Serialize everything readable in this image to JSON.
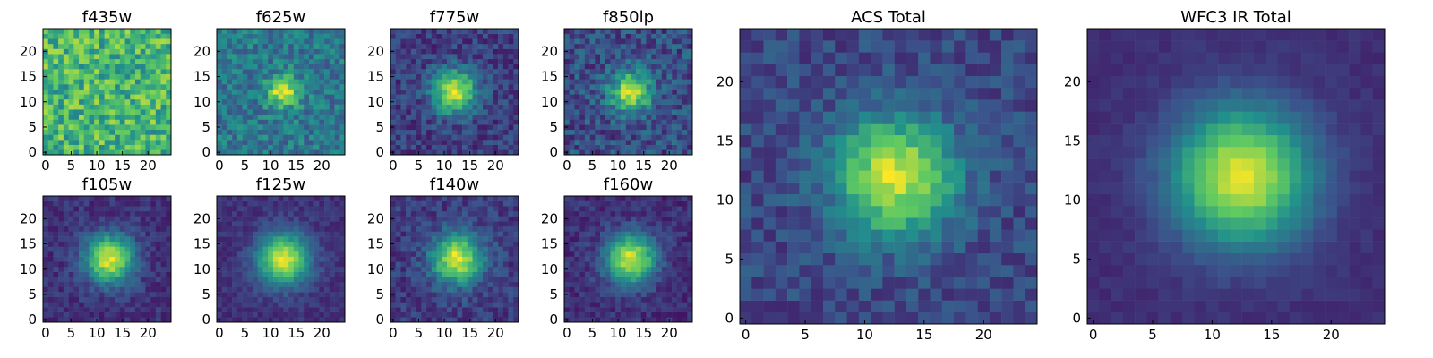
{
  "figure": {
    "colormap": "viridis",
    "colormap_stops": [
      "#440154",
      "#3b528b",
      "#21918c",
      "#5ec962",
      "#fde725"
    ]
  },
  "chart_data": [
    {
      "type": "heatmap",
      "title": "f435w",
      "grid": [
        25,
        25
      ],
      "xlim": [
        -0.5,
        24.5
      ],
      "ylim": [
        -0.5,
        24.5
      ],
      "xticks": [
        0,
        5,
        10,
        15,
        20
      ],
      "yticks": [
        0,
        5,
        10,
        15,
        20
      ],
      "source_center": [
        12,
        12
      ],
      "peak": 0.0,
      "source_width": 3.5,
      "background_level": 0.66,
      "noise_amplitude": 0.22,
      "seed": 11
    },
    {
      "type": "heatmap",
      "title": "f625w",
      "grid": [
        25,
        25
      ],
      "xlim": [
        -0.5,
        24.5
      ],
      "ylim": [
        -0.5,
        24.5
      ],
      "xticks": [
        0,
        5,
        10,
        15,
        20
      ],
      "yticks": [
        0,
        5,
        10,
        15,
        20
      ],
      "source_center": [
        12.5,
        12
      ],
      "peak": 0.58,
      "source_width": 2.1,
      "background_level": 0.4,
      "noise_amplitude": 0.15,
      "seed": 23
    },
    {
      "type": "heatmap",
      "title": "f775w",
      "grid": [
        25,
        25
      ],
      "xlim": [
        -0.5,
        24.5
      ],
      "ylim": [
        -0.5,
        24.5
      ],
      "xticks": [
        0,
        5,
        10,
        15,
        20
      ],
      "yticks": [
        0,
        5,
        10,
        15,
        20
      ],
      "source_center": [
        12,
        12
      ],
      "peak": 0.74,
      "source_width": 3.0,
      "background_level": 0.19,
      "noise_amplitude": 0.12,
      "seed": 37
    },
    {
      "type": "heatmap",
      "title": "f850lp",
      "grid": [
        25,
        25
      ],
      "xlim": [
        -0.5,
        24.5
      ],
      "ylim": [
        -0.5,
        24.5
      ],
      "xticks": [
        0,
        5,
        10,
        15,
        20
      ],
      "yticks": [
        0,
        5,
        10,
        15,
        20
      ],
      "source_center": [
        12.5,
        12
      ],
      "peak": 0.68,
      "source_width": 2.8,
      "background_level": 0.24,
      "noise_amplitude": 0.15,
      "seed": 41
    },
    {
      "type": "heatmap",
      "title": "f105w",
      "grid": [
        25,
        25
      ],
      "xlim": [
        -0.5,
        24.5
      ],
      "ylim": [
        -0.5,
        24.5
      ],
      "xticks": [
        0,
        5,
        10,
        15,
        20
      ],
      "yticks": [
        0,
        5,
        10,
        15,
        20
      ],
      "source_center": [
        12.5,
        12
      ],
      "peak": 0.8,
      "source_width": 3.3,
      "background_level": 0.15,
      "noise_amplitude": 0.08,
      "seed": 53
    },
    {
      "type": "heatmap",
      "title": "f125w",
      "grid": [
        25,
        25
      ],
      "xlim": [
        -0.5,
        24.5
      ],
      "ylim": [
        -0.5,
        24.5
      ],
      "xticks": [
        0,
        5,
        10,
        15,
        20
      ],
      "yticks": [
        0,
        5,
        10,
        15,
        20
      ],
      "source_center": [
        12.5,
        12
      ],
      "peak": 0.8,
      "source_width": 3.5,
      "background_level": 0.15,
      "noise_amplitude": 0.06,
      "seed": 67
    },
    {
      "type": "heatmap",
      "title": "f140w",
      "grid": [
        25,
        25
      ],
      "xlim": [
        -0.5,
        24.5
      ],
      "ylim": [
        -0.5,
        24.5
      ],
      "xticks": [
        0,
        5,
        10,
        15,
        20
      ],
      "yticks": [
        0,
        5,
        10,
        15,
        20
      ],
      "source_center": [
        12.5,
        12
      ],
      "peak": 0.76,
      "source_width": 3.4,
      "background_level": 0.18,
      "noise_amplitude": 0.1,
      "seed": 79
    },
    {
      "type": "heatmap",
      "title": "f160w",
      "grid": [
        25,
        25
      ],
      "xlim": [
        -0.5,
        24.5
      ],
      "ylim": [
        -0.5,
        24.5
      ],
      "xticks": [
        0,
        5,
        10,
        15,
        20
      ],
      "yticks": [
        0,
        5,
        10,
        15,
        20
      ],
      "source_center": [
        12.5,
        12
      ],
      "peak": 0.8,
      "source_width": 3.4,
      "background_level": 0.14,
      "noise_amplitude": 0.08,
      "seed": 83
    },
    {
      "type": "heatmap",
      "title": "ACS Total",
      "grid": [
        25,
        25
      ],
      "xlim": [
        -0.5,
        24.5
      ],
      "ylim": [
        -0.5,
        24.5
      ],
      "xticks": [
        0,
        5,
        10,
        15,
        20
      ],
      "yticks": [
        0,
        5,
        10,
        15,
        20
      ],
      "source_center": [
        12.5,
        12
      ],
      "peak": 0.72,
      "source_width": 3.5,
      "background_level": 0.22,
      "noise_amplitude": 0.1,
      "seed": 97
    },
    {
      "type": "heatmap",
      "title": "WFC3 IR Total",
      "grid": [
        25,
        25
      ],
      "xlim": [
        -0.5,
        24.5
      ],
      "ylim": [
        -0.5,
        24.5
      ],
      "xticks": [
        0,
        5,
        10,
        15,
        20
      ],
      "yticks": [
        0,
        5,
        10,
        15,
        20
      ],
      "source_center": [
        12.5,
        12
      ],
      "peak": 0.82,
      "source_width": 4.0,
      "background_level": 0.14,
      "noise_amplitude": 0.03,
      "seed": 101
    }
  ]
}
